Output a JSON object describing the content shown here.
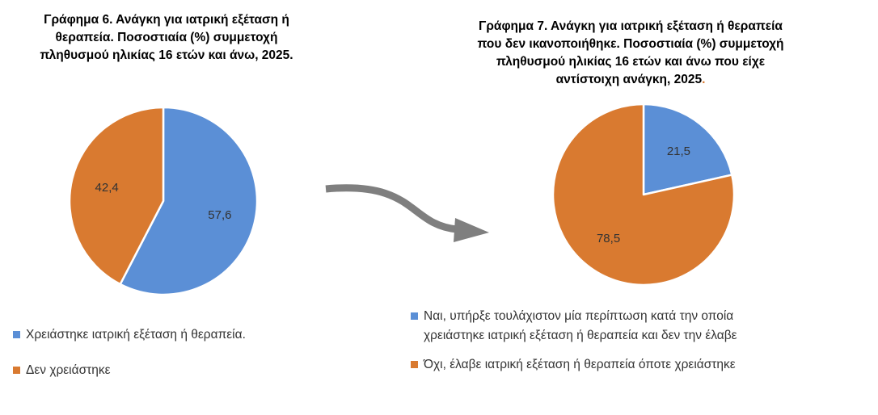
{
  "chart_data": [
    {
      "type": "pie",
      "title": "Γράφημα 6. Ανάγκη για ιατρική εξέταση ή\nθεραπεία. Ποσοστιαία (%) συμμετοχή\nπληθυσμού ηλικίας 16 ετών και άνω, 2025.",
      "slices": [
        {
          "label": "Χρειάστηκε ιατρική εξέταση ή θεραπεία.",
          "value": 57.6,
          "display": "57,6",
          "color": "#5b8fd6"
        },
        {
          "label": "Δεν χρειάστηκε",
          "value": 42.4,
          "display": "42,4",
          "color": "#d97a30"
        }
      ],
      "legend_position": "bottom"
    },
    {
      "type": "pie",
      "title": "Γράφημα 7. Ανάγκη για ιατρική εξέταση ή θεραπεία\nπου δεν ικανοποιήθηκε. Ποσοστιαία (%) συμμετοχή\nπληθυσμού ηλικίας 16 ετών και άνω που είχε\nαντίστοιχη ανάγκη, 2025",
      "title_suffix": ".",
      "slices": [
        {
          "label": "Ναι, υπήρξε τουλάχιστον μία περίπτωση  κατά την οποία\nχρειάστηκε ιατρική εξέταση ή θεραπεία  και δεν την έλαβε",
          "value": 21.5,
          "display": "21,5",
          "color": "#5b8fd6"
        },
        {
          "label": "Όχι, έλαβε ιατρική εξέταση ή θεραπεία όποτε χρειάστηκε",
          "value": 78.5,
          "display": "78,5",
          "color": "#d97a30"
        }
      ],
      "legend_position": "bottom"
    }
  ],
  "colors": {
    "blue": "#5b8fd6",
    "orange": "#d97a30",
    "arrow": "#7f7f7f"
  },
  "icons": {
    "connector": "curved-arrow-right-icon"
  }
}
